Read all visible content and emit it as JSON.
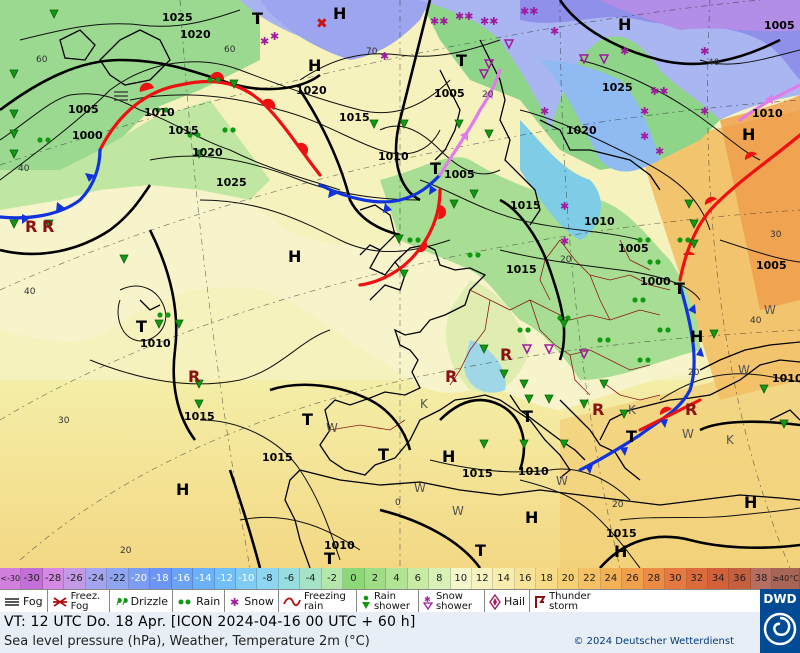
{
  "map": {
    "pressure_highs": [
      "H",
      "H",
      "H",
      "H",
      "H",
      "H",
      "H",
      "H",
      "H",
      "H",
      "H",
      "H",
      "H",
      "H",
      "H"
    ],
    "pressure_lows": [
      "T",
      "T",
      "T",
      "T",
      "T",
      "T",
      "T",
      "T",
      "T",
      "T",
      "T"
    ],
    "isobar_labels": [
      "1025",
      "1020",
      "1005",
      "1000",
      "1010",
      "1015",
      "1020",
      "1025",
      "1020",
      "1005",
      "1015",
      "1010",
      "1005",
      "1015",
      "1005",
      "1000",
      "1020",
      "1025",
      "1005",
      "1010",
      "1015",
      "1010",
      "1015",
      "1015",
      "1015",
      "1010",
      "1015",
      "1010",
      "1010",
      "1010",
      "1005"
    ],
    "temp_labels": [
      "60",
      "60",
      "70",
      "40",
      "40",
      "30",
      "20",
      "40",
      "20",
      "0",
      "30",
      "20",
      "20",
      "40",
      "20"
    ],
    "cloud_symbols": [
      "W",
      "W",
      "W",
      "K",
      "K",
      "W",
      "W",
      "W",
      "K",
      "W"
    ]
  },
  "temperature_scale": {
    "unit_low": "<-30",
    "unit_high": "≥40°C",
    "values": [
      "-30",
      "-28",
      "-26",
      "-24",
      "-22",
      "-20",
      "-18",
      "-16",
      "-14",
      "-12",
      "-10",
      "-8",
      "-6",
      "-4",
      "-2",
      "0",
      "2",
      "4",
      "6",
      "8",
      "10",
      "12",
      "14",
      "16",
      "18",
      "20",
      "22",
      "24",
      "26",
      "28",
      "30",
      "32",
      "34",
      "36",
      "38"
    ],
    "colors": [
      "#c46fd8",
      "#d48ae2",
      "#c49ae6",
      "#a3a6ee",
      "#8fa5f0",
      "#7a9cf3",
      "#6b96f5",
      "#6aa3f7",
      "#6cb0f8",
      "#72bef8",
      "#80cbf4",
      "#8ed6ef",
      "#98ddde",
      "#a6e3c6",
      "#b5e7ad",
      "#8cd878",
      "#9edc86",
      "#b3e394",
      "#c7eaa4",
      "#d9f0b6",
      "#f4f6cc",
      "#f7f3c0",
      "#f8edac",
      "#f8e498",
      "#f8db86",
      "#f7cf74",
      "#f6c164",
      "#f3b055",
      "#f09f4b",
      "#ec8c44",
      "#e5793f",
      "#dc6b3c",
      "#d2613a",
      "#c5603f",
      "#b56f62"
    ]
  },
  "legend": {
    "fog": "Fog",
    "freezing_fog": "Freez. Fog",
    "drizzle": "Drizzle",
    "rain": "Rain",
    "snow": "Snow",
    "freezing_rain": "Freezing rain",
    "rain_shower": "Rain shower",
    "snow_shower": "Snow shower",
    "hail": "Hail",
    "thunderstorm": "Thunder storm"
  },
  "footer": {
    "valid_time": "VT: 12 UTC Do.  18 Apr. [ICON 2024-04-16  00 UTC + 60 h]",
    "subtitle": "Sea level pressure (hPa), Weather, Temperature 2m (°C)",
    "copyright": "© 2024 Deutscher Wetterdienst",
    "logo_text": "DWD"
  }
}
